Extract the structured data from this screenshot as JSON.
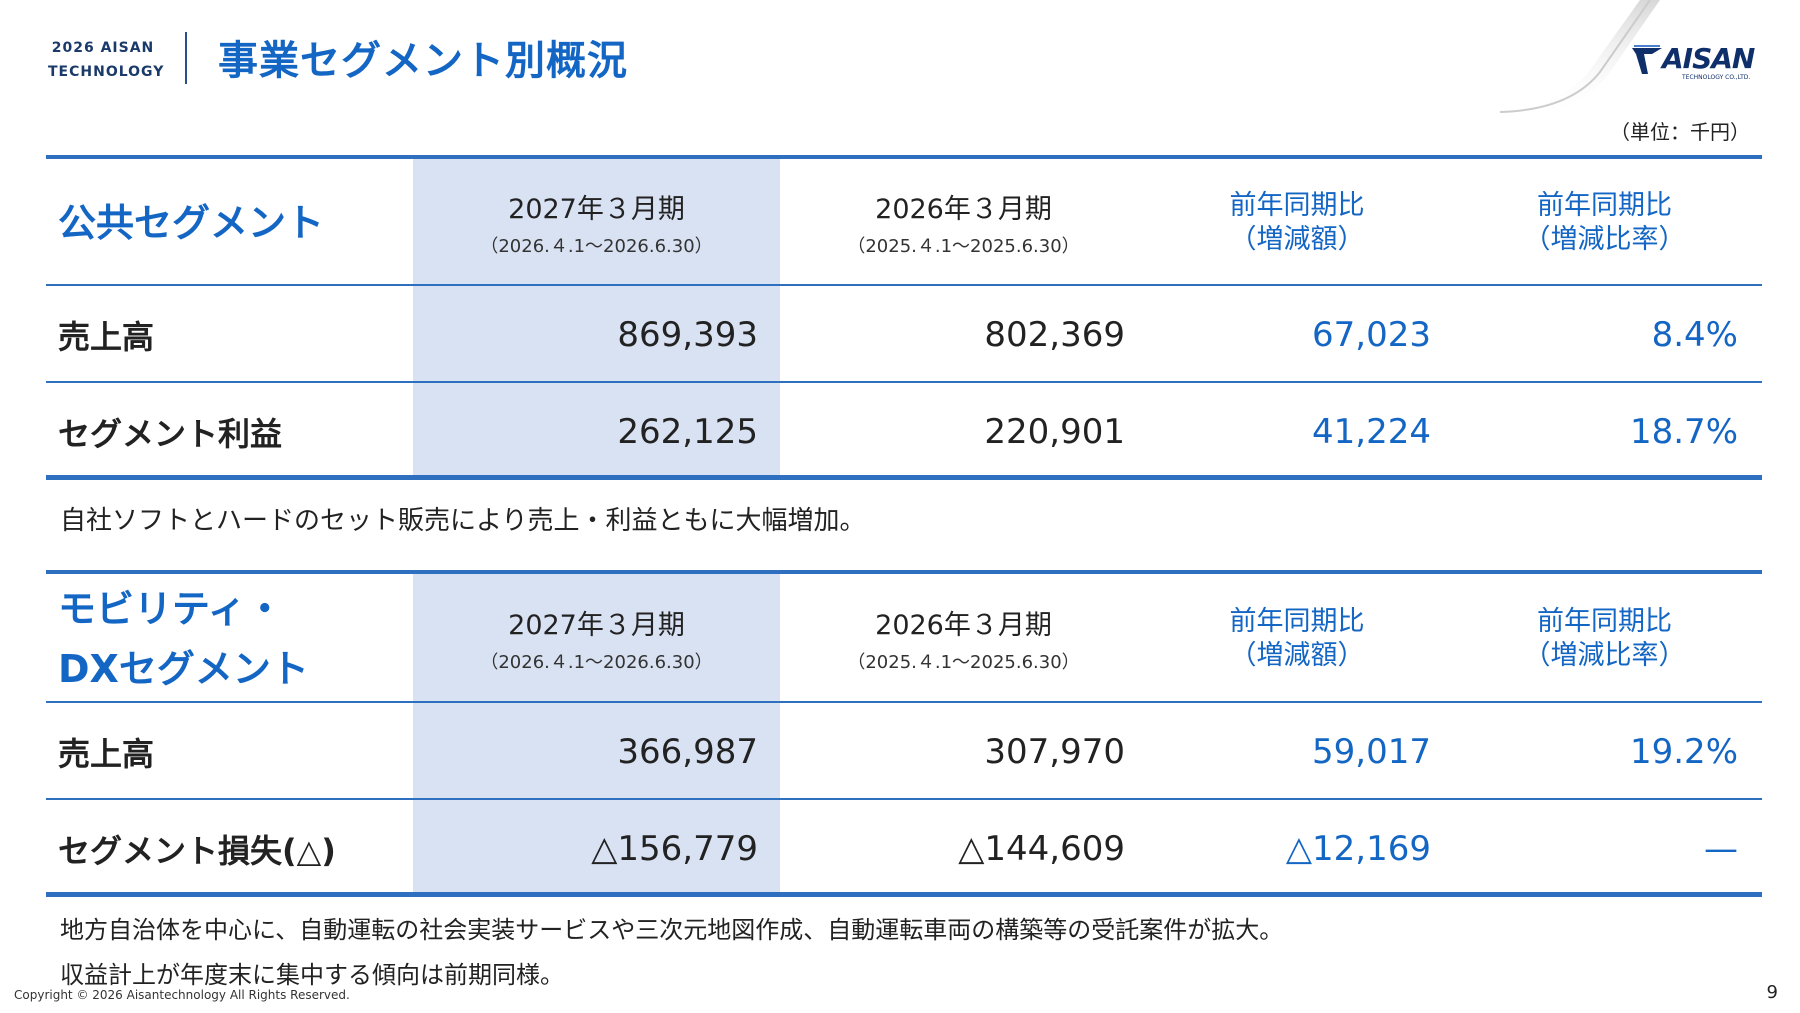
{
  "header": {
    "year_logo_line1": "2026 AISAN",
    "year_logo_line2": "TECHNOLOGY",
    "title": "事業セグメント別概況",
    "brand_name": "AISAN",
    "brand_sub": "TECHNOLOGY CO.,LTD."
  },
  "unit": "（単位：千円）",
  "columns": {
    "current_period": "2027年３月期",
    "current_range": "（2026.４.1～2026.6.30）",
    "prior_period": "2026年３月期",
    "prior_range": "（2025.４.1～2025.6.30）",
    "yoy_amount_line1": "前年同期比",
    "yoy_amount_line2": "（増減額）",
    "yoy_rate_line1": "前年同期比",
    "yoy_rate_line2": "（増減比率）"
  },
  "public_segment": {
    "title": "公共セグメント",
    "rows": [
      {
        "label": "売上高",
        "current": "869,393",
        "prior": "802,369",
        "diff": "67,023",
        "rate": "8.4%"
      },
      {
        "label": "セグメント利益",
        "current": "262,125",
        "prior": "220,901",
        "diff": "41,224",
        "rate": "18.7%"
      }
    ],
    "note": "自社ソフトとハードのセット販売により売上・利益ともに大幅増加。"
  },
  "mobility_segment": {
    "title_line1": "モビリティ・",
    "title_line2": "DXセグメント",
    "rows": [
      {
        "label": "売上高",
        "current": "366,987",
        "prior": "307,970",
        "diff": "59,017",
        "rate": "19.2%"
      },
      {
        "label": "セグメント損失(△)",
        "current": "△156,779",
        "prior": "△144,609",
        "diff": "△12,169",
        "rate": "—"
      }
    ],
    "note_line1": "地方自治体を中心に、自動運転の社会実装サービスや三次元地図作成、自動運転車両の構築等の受託案件が拡大。",
    "note_line2": "収益計上が年度末に集中する傾向は前期同様。"
  },
  "footer": {
    "copyright": "Copyright © 2026 Aisantechnology All Rights Reserved.",
    "page_number": "9"
  }
}
